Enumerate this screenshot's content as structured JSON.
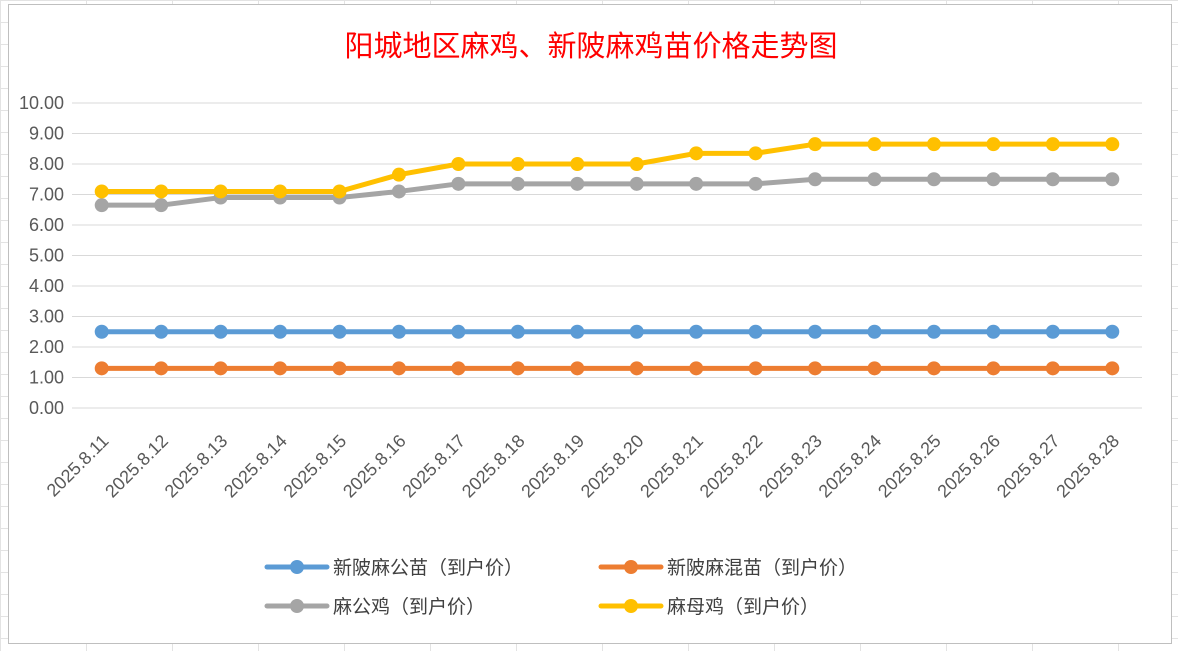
{
  "chart_data": {
    "type": "line",
    "title": "阳城地区麻鸡、新陂麻鸡苗价格走势图",
    "xlabel": "",
    "ylabel": "",
    "ylim": [
      0,
      10
    ],
    "ytick_step": 1,
    "ytick_labels": [
      "0.00",
      "1.00",
      "2.00",
      "3.00",
      "4.00",
      "5.00",
      "6.00",
      "7.00",
      "8.00",
      "9.00",
      "10.00"
    ],
    "categories": [
      "2025.8.11",
      "2025.8.12",
      "2025.8.13",
      "2025.8.14",
      "2025.8.15",
      "2025.8.16",
      "2025.8.17",
      "2025.8.18",
      "2025.8.19",
      "2025.8.20",
      "2025.8.21",
      "2025.8.22",
      "2025.8.23",
      "2025.8.24",
      "2025.8.25",
      "2025.8.26",
      "2025.8.27",
      "2025.8.28"
    ],
    "grid": "horizontal",
    "legend_position": "bottom",
    "series": [
      {
        "name": "新陂麻公苗（到户价）",
        "color": "#5b9bd5",
        "values": [
          2.5,
          2.5,
          2.5,
          2.5,
          2.5,
          2.5,
          2.5,
          2.5,
          2.5,
          2.5,
          2.5,
          2.5,
          2.5,
          2.5,
          2.5,
          2.5,
          2.5,
          2.5
        ]
      },
      {
        "name": "新陂麻混苗（到户价）",
        "color": "#ed7d31",
        "values": [
          1.3,
          1.3,
          1.3,
          1.3,
          1.3,
          1.3,
          1.3,
          1.3,
          1.3,
          1.3,
          1.3,
          1.3,
          1.3,
          1.3,
          1.3,
          1.3,
          1.3,
          1.3
        ]
      },
      {
        "name": "麻公鸡（到户价）",
        "color": "#a5a5a5",
        "values": [
          6.65,
          6.65,
          6.9,
          6.9,
          6.9,
          7.1,
          7.35,
          7.35,
          7.35,
          7.35,
          7.35,
          7.35,
          7.5,
          7.5,
          7.5,
          7.5,
          7.5,
          7.5
        ]
      },
      {
        "name": "麻母鸡（到户价）",
        "color": "#ffc000",
        "values": [
          7.1,
          7.1,
          7.1,
          7.1,
          7.1,
          7.65,
          8.0,
          8.0,
          8.0,
          8.0,
          8.35,
          8.35,
          8.65,
          8.65,
          8.65,
          8.65,
          8.65,
          8.65
        ]
      }
    ]
  }
}
